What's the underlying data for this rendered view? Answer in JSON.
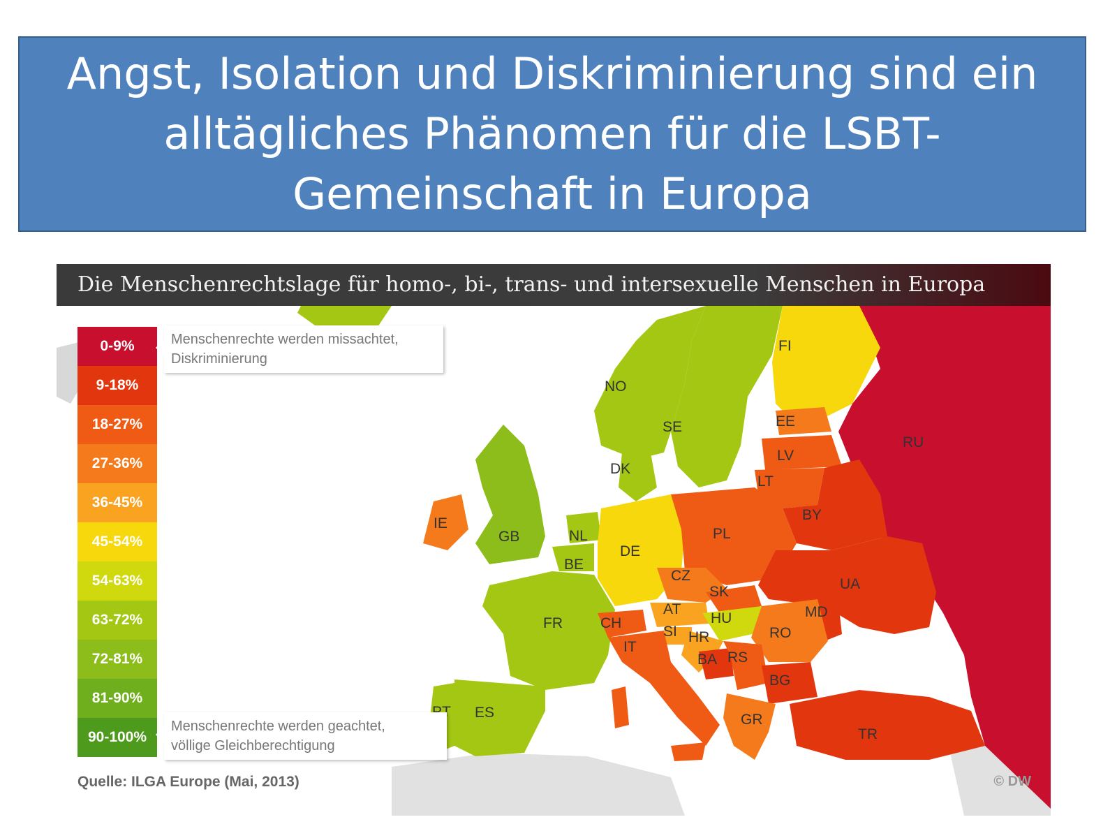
{
  "slide": {
    "title": "Angst, Isolation und Diskriminierung sind ein alltägliches Phänomen für die LSBT-Gemeinschaft in Europa"
  },
  "map": {
    "header": "Die Menschenrechtslage für homo-, bi-, trans- und intersexuelle Menschen in Europa",
    "legend": [
      {
        "label": "0-9%",
        "color": "#c8102e"
      },
      {
        "label": "9-18%",
        "color": "#e2360f"
      },
      {
        "label": "18-27%",
        "color": "#ef5a14"
      },
      {
        "label": "27-36%",
        "color": "#f47a1c"
      },
      {
        "label": "36-45%",
        "color": "#f9a321"
      },
      {
        "label": "45-54%",
        "color": "#f6d80c"
      },
      {
        "label": "54-63%",
        "color": "#cfd90e"
      },
      {
        "label": "63-72%",
        "color": "#a4c714"
      },
      {
        "label": "72-81%",
        "color": "#8cbd1a"
      },
      {
        "label": "81-90%",
        "color": "#6fae1c"
      },
      {
        "label": "90-100%",
        "color": "#4e9a1c"
      }
    ],
    "callout_top": {
      "line1": "Menschenrechte werden missachtet,",
      "line2": "Diskriminierung"
    },
    "callout_bottom": {
      "line1": "Menschenrechte werden geachtet,",
      "line2": "völlige Gleichberechtigung"
    },
    "source": "Quelle: ILGA Europe (Mai, 2013)",
    "credit": "© DW",
    "countries": [
      {
        "code": "NO",
        "color": "#a4c714"
      },
      {
        "code": "SE",
        "color": "#a4c714"
      },
      {
        "code": "FI",
        "color": "#f6d80c"
      },
      {
        "code": "RU",
        "color": "#c8102e"
      },
      {
        "code": "EE",
        "color": "#f47a1c"
      },
      {
        "code": "LV",
        "color": "#ef5a14"
      },
      {
        "code": "LT",
        "color": "#ef5a14"
      },
      {
        "code": "BY",
        "color": "#e2360f"
      },
      {
        "code": "DK",
        "color": "#a4c714"
      },
      {
        "code": "IE",
        "color": "#f47a1c"
      },
      {
        "code": "GB",
        "color": "#8cbd1a"
      },
      {
        "code": "NL",
        "color": "#a4c714"
      },
      {
        "code": "BE",
        "color": "#a4c714"
      },
      {
        "code": "DE",
        "color": "#f6d80c"
      },
      {
        "code": "PL",
        "color": "#ef5a14"
      },
      {
        "code": "UA",
        "color": "#e2360f"
      },
      {
        "code": "CZ",
        "color": "#f47a1c"
      },
      {
        "code": "SK",
        "color": "#ef5a14"
      },
      {
        "code": "FR",
        "color": "#a4c714"
      },
      {
        "code": "CH",
        "color": "#ef5a14"
      },
      {
        "code": "AT",
        "color": "#f9a321"
      },
      {
        "code": "HU",
        "color": "#cfd90e"
      },
      {
        "code": "MD",
        "color": "#e2360f"
      },
      {
        "code": "RO",
        "color": "#f47a1c"
      },
      {
        "code": "SI",
        "color": "#f9a321"
      },
      {
        "code": "HR",
        "color": "#f9a321"
      },
      {
        "code": "IT",
        "color": "#ef5a14"
      },
      {
        "code": "BA",
        "color": "#e2360f"
      },
      {
        "code": "RS",
        "color": "#ef5a14"
      },
      {
        "code": "BG",
        "color": "#e2360f"
      },
      {
        "code": "GR",
        "color": "#f47a1c"
      },
      {
        "code": "TR",
        "color": "#e2360f"
      },
      {
        "code": "PT",
        "color": "#a4c714"
      },
      {
        "code": "ES",
        "color": "#a4c714"
      }
    ]
  }
}
